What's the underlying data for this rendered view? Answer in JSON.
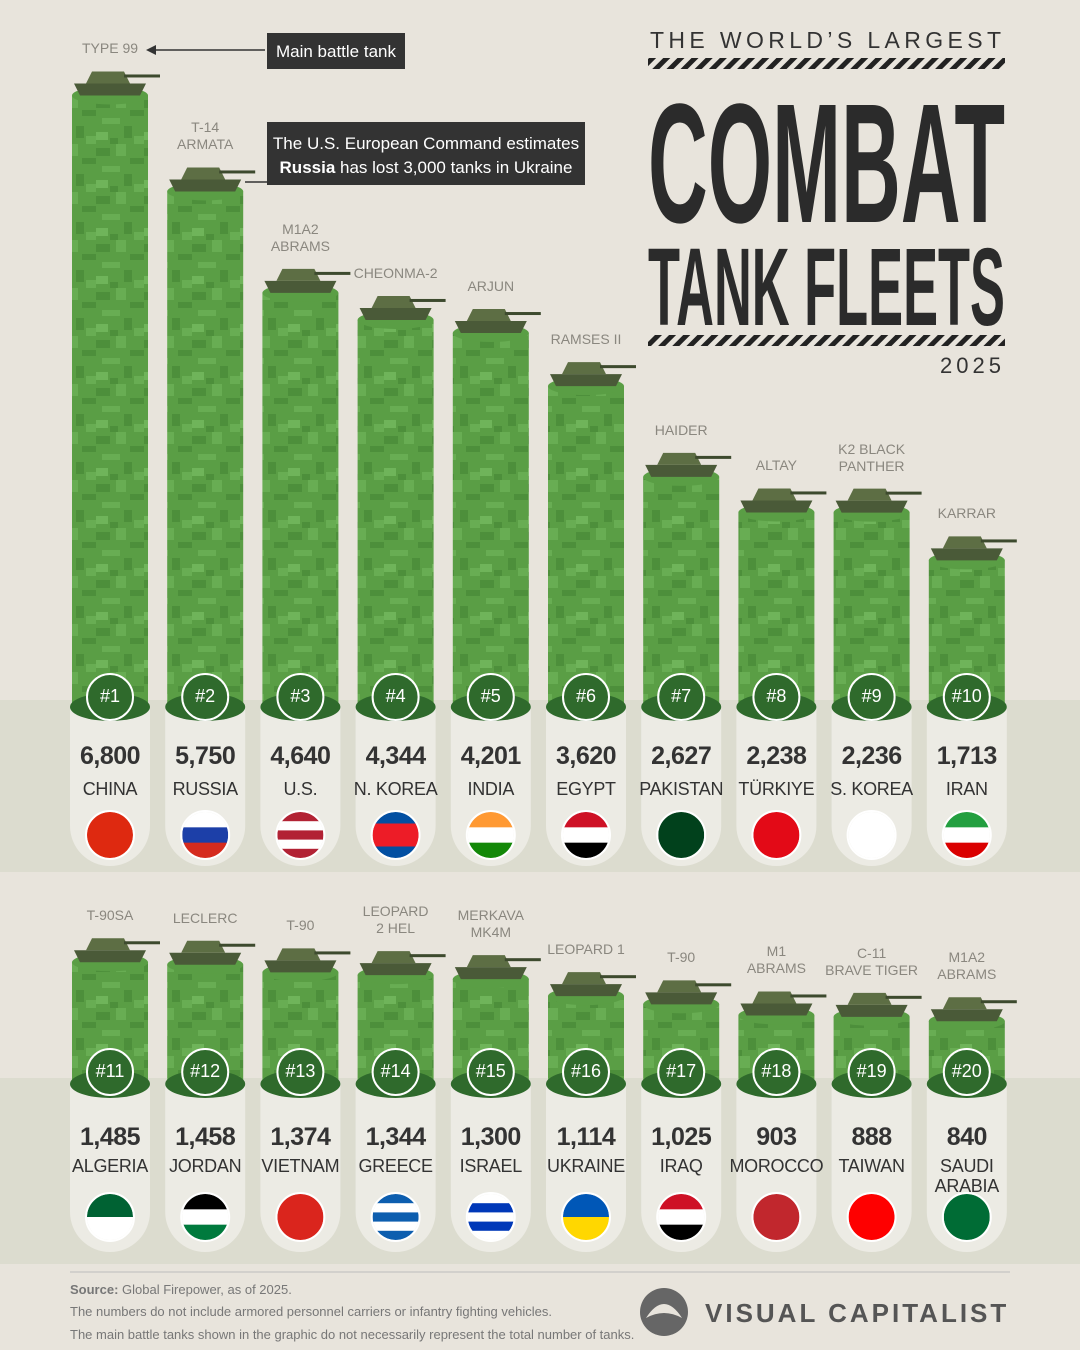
{
  "header": {
    "kicker": "THE WORLD’S LARGEST",
    "title_lines": [
      "COMBAT",
      "TANK FLEETS"
    ],
    "year": "2025"
  },
  "annotations": {
    "main": "Main battle tank",
    "note_line1": "The U.S. European Command estimates",
    "note_bold": "Russia",
    "note_rest": " has lost 3,000 tanks in Ukraine"
  },
  "chart_data": [
    {
      "type": "bar",
      "categories": [
        "CHINA",
        "RUSSIA",
        "U.S.",
        "N. KOREA",
        "INDIA",
        "EGYPT",
        "PAKISTAN",
        "TÜRKIYE",
        "S. KOREA",
        "IRAN"
      ],
      "values": [
        6800,
        5750,
        4640,
        4344,
        4201,
        3620,
        2627,
        2238,
        2236,
        1713
      ],
      "value_labels": [
        "6,800",
        "5,750",
        "4,640",
        "4,344",
        "4,201",
        "3,620",
        "2,627",
        "2,238",
        "2,236",
        "1,713"
      ],
      "ranks": [
        "#1",
        "#2",
        "#3",
        "#4",
        "#5",
        "#6",
        "#7",
        "#8",
        "#9",
        "#10"
      ],
      "tanks": [
        [
          "TYPE 99"
        ],
        [
          "T-14",
          "ARMATA"
        ],
        [
          "M1A2",
          "ABRAMS"
        ],
        [
          "CHEONMA-2"
        ],
        [
          "ARJUN"
        ],
        [
          "RAMSES II"
        ],
        [
          "HAIDER"
        ],
        [
          "ALTAY"
        ],
        [
          "K2 BLACK",
          "PANTHER"
        ],
        [
          "KARRAR"
        ]
      ],
      "color": "#5a9e45"
    },
    {
      "type": "bar",
      "categories": [
        "ALGERIA",
        "JORDAN",
        "VIETNAM",
        "GREECE",
        "ISRAEL",
        "UKRAINE",
        "IRAQ",
        "MOROCCO",
        "TAIWAN",
        "SAUDI ARABIA"
      ],
      "values": [
        1485,
        1458,
        1374,
        1344,
        1300,
        1114,
        1025,
        903,
        888,
        840
      ],
      "value_labels": [
        "1,485",
        "1,458",
        "1,374",
        "1,344",
        "1,300",
        "1,114",
        "1,025",
        "903",
        "888",
        "840"
      ],
      "ranks": [
        "#11",
        "#12",
        "#13",
        "#14",
        "#15",
        "#16",
        "#17",
        "#18",
        "#19",
        "#20"
      ],
      "tanks": [
        [
          "T-90SA"
        ],
        [
          "LECLERC"
        ],
        [
          "T-90"
        ],
        [
          "LEOPARD",
          "2 HEL"
        ],
        [
          "MERKAVA",
          "MK4M"
        ],
        [
          "LEOPARD 1"
        ],
        [
          "T-90"
        ],
        [
          "M1",
          "ABRAMS"
        ],
        [
          "C-11",
          "BRAVE TIGER"
        ],
        [
          "M1A2",
          "ABRAMS"
        ]
      ],
      "color": "#5a9e45"
    }
  ],
  "footer": {
    "source_label": "Source:",
    "source": " Global Firepower, as of 2025.",
    "notes": [
      "The numbers do not include armored personnel carriers or infantry fighting vehicles.",
      "The main battle tanks shown in the graphic do not necessarily represent the total number of tanks."
    ],
    "brand": "VISUAL CAPITALIST"
  }
}
